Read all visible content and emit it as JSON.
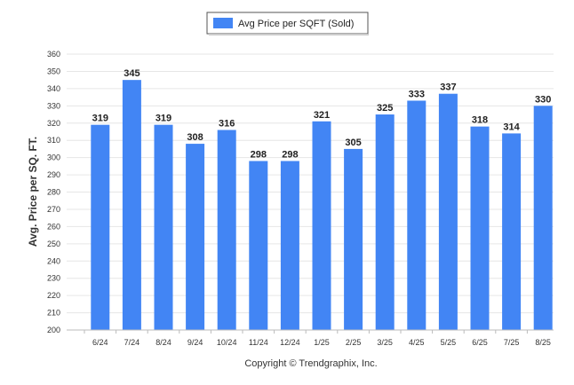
{
  "chart_data": {
    "type": "bar",
    "categories": [
      "6/24",
      "7/24",
      "8/24",
      "9/24",
      "10/24",
      "11/24",
      "12/24",
      "1/25",
      "2/25",
      "3/25",
      "4/25",
      "5/25",
      "6/25",
      "7/25",
      "8/25"
    ],
    "series": [
      {
        "name": "Avg Price per SQFT (Sold)",
        "values": [
          319,
          345,
          319,
          308,
          316,
          298,
          298,
          321,
          305,
          325,
          333,
          337,
          318,
          314,
          330
        ]
      }
    ],
    "ylabel": "Avg. Price per SQ. FT.",
    "xlabel": "",
    "ylim": [
      200,
      360
    ],
    "yticks": [
      200,
      210,
      220,
      230,
      240,
      250,
      260,
      270,
      280,
      290,
      300,
      310,
      320,
      330,
      340,
      350,
      360
    ],
    "grid": true,
    "legend_position": "top-center",
    "bar_color": "#4285f4",
    "caption": "Copyright © Trendgraphix, Inc."
  }
}
